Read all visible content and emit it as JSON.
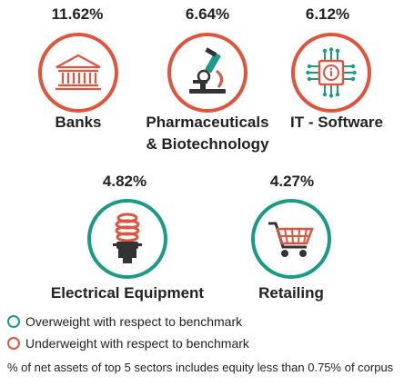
{
  "colors": {
    "overweight": "#1a9b86",
    "underweight": "#e0533d",
    "icon_primary": "#e0533d",
    "icon_secondary": "#1a9b86",
    "icon_dark": "#333333"
  },
  "sectors": [
    {
      "name": "Banks",
      "percent": "11.62%",
      "weight": "underweight",
      "icon": "bank-icon"
    },
    {
      "name": "Pharmaceuticals",
      "name_line2": "& Biotechnology",
      "percent": "6.64%",
      "weight": "underweight",
      "icon": "microscope-icon"
    },
    {
      "name": "IT - Software",
      "percent": "6.12%",
      "weight": "underweight",
      "icon": "chip-icon"
    },
    {
      "name": "Electrical Equipment",
      "percent": "4.82%",
      "weight": "overweight",
      "icon": "light-bulb-icon"
    },
    {
      "name": "Retailing",
      "percent": "4.27%",
      "weight": "overweight",
      "icon": "shopping-cart-icon"
    }
  ],
  "legend": {
    "overweight": "Overweight with respect to benchmark",
    "underweight": "Underweight with respect to benchmark"
  },
  "note": "% of net assets of top 5 sectors includes equity less than 0.75% of corpus"
}
